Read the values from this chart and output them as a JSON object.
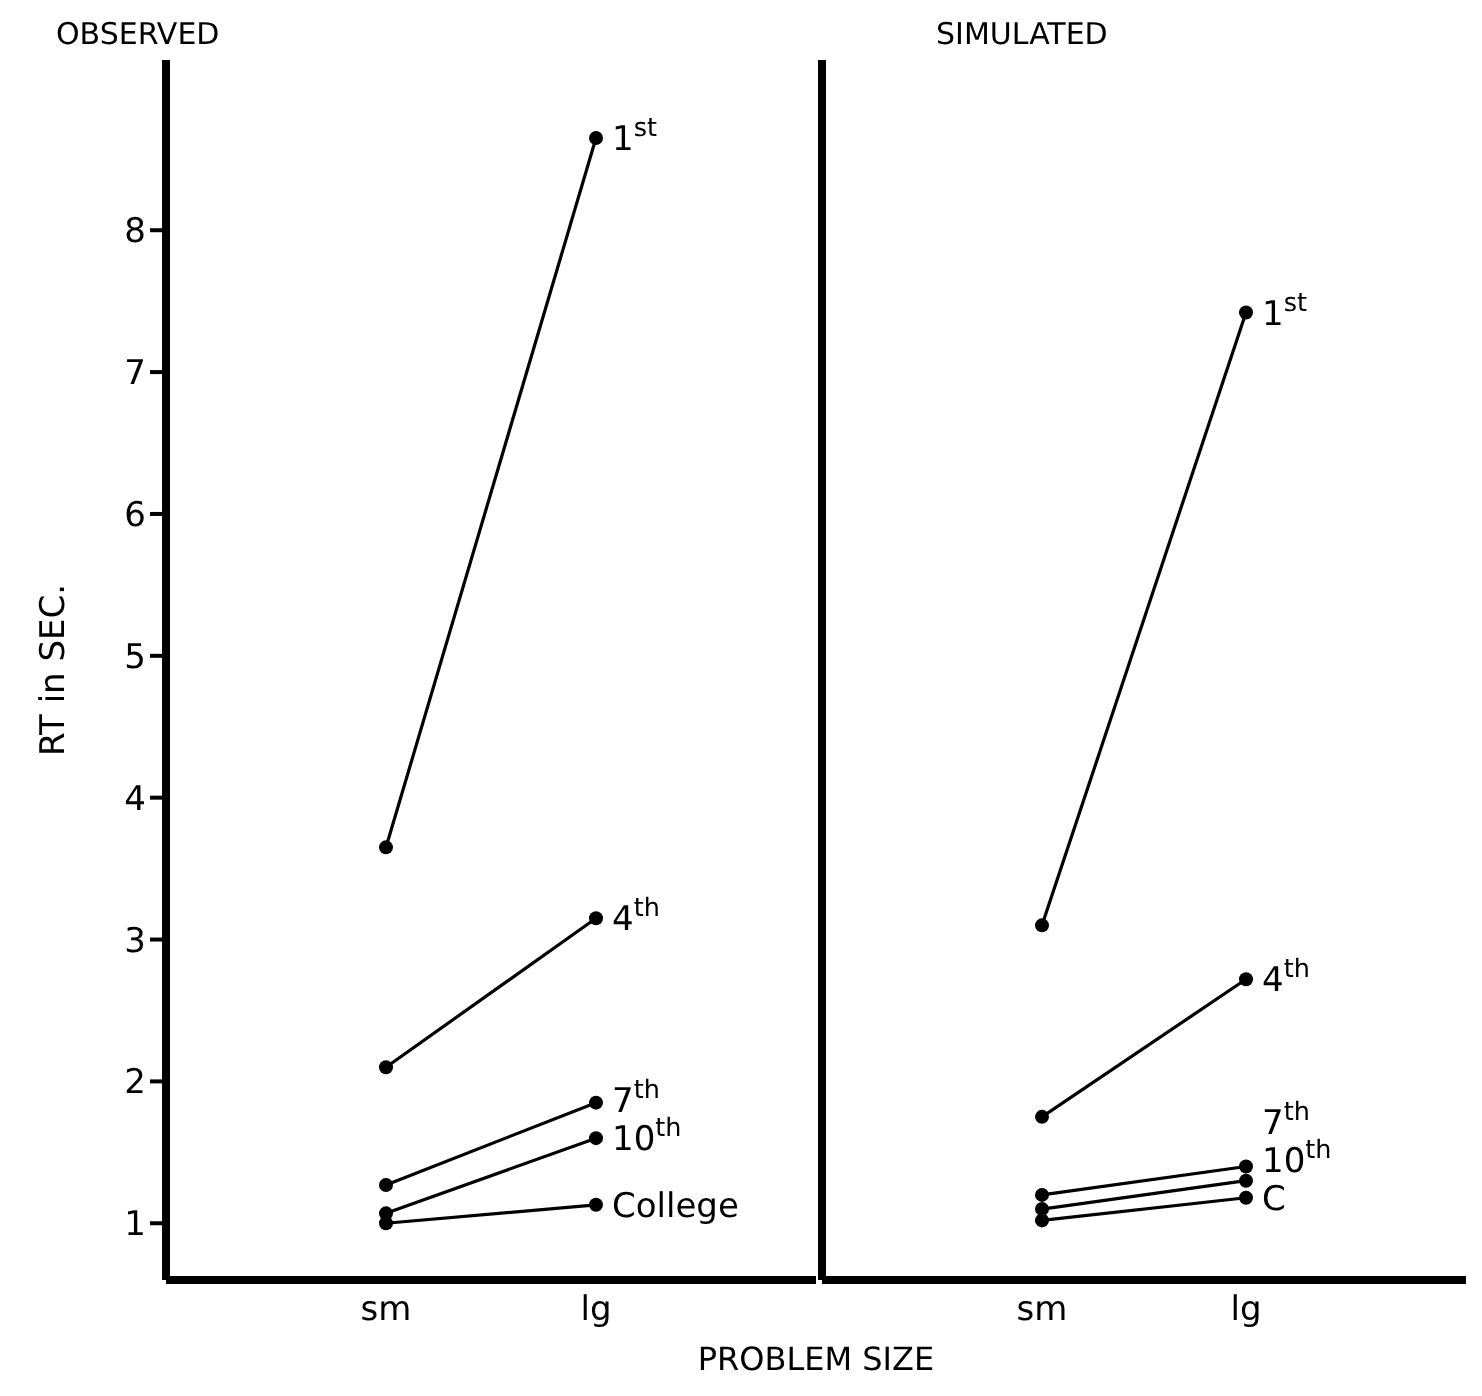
{
  "chart_data": [
    {
      "type": "line",
      "title": "OBSERVED",
      "xlabel": "PROBLEM SIZE",
      "ylabel": "RT in SEC.",
      "categories": [
        "sm",
        "lg"
      ],
      "ylim": [
        0.6,
        9.2
      ],
      "yticks": [
        1,
        2,
        3,
        4,
        5,
        6,
        7,
        8
      ],
      "marker": "circle",
      "line_style": "solid",
      "grid": false,
      "legend": false,
      "series": [
        {
          "name": "1$^{st}$",
          "color": "#000000",
          "values": [
            3.65,
            8.65
          ]
        },
        {
          "name": "4$^{th}$",
          "color": "#000000",
          "values": [
            2.1,
            3.15
          ]
        },
        {
          "name": "7$^{th}$",
          "color": "#000000",
          "values": [
            1.27,
            1.85
          ]
        },
        {
          "name": "10$^{th}$",
          "color": "#000000",
          "values": [
            1.07,
            1.6
          ]
        },
        {
          "name": "College",
          "color": "#000000",
          "values": [
            1.0,
            1.13
          ]
        }
      ]
    },
    {
      "type": "line",
      "title": "SIMULATED",
      "categories": [
        "sm",
        "lg"
      ],
      "ylim": [
        0.6,
        9.2
      ],
      "yticks": [
        1,
        2,
        3,
        4,
        5,
        6,
        7,
        8
      ],
      "tick_labels": "x",
      "marker": "circle",
      "line_style": "solid",
      "grid": false,
      "legend": false,
      "series": [
        {
          "name": "1$^{st}$",
          "color": "#000000",
          "values": [
            3.1,
            7.42
          ]
        },
        {
          "name": "4$^{th}$",
          "color": "#000000",
          "values": [
            1.75,
            2.72
          ]
        },
        {
          "name": "7$^{th}$",
          "color": "#000000",
          "values": [
            1.2,
            1.4
          ]
        },
        {
          "name": "10$^{th}$",
          "color": "#000000",
          "values": [
            1.1,
            1.3
          ]
        },
        {
          "name": "C",
          "color": "#000000",
          "values": [
            1.02,
            1.18
          ]
        }
      ]
    }
  ]
}
